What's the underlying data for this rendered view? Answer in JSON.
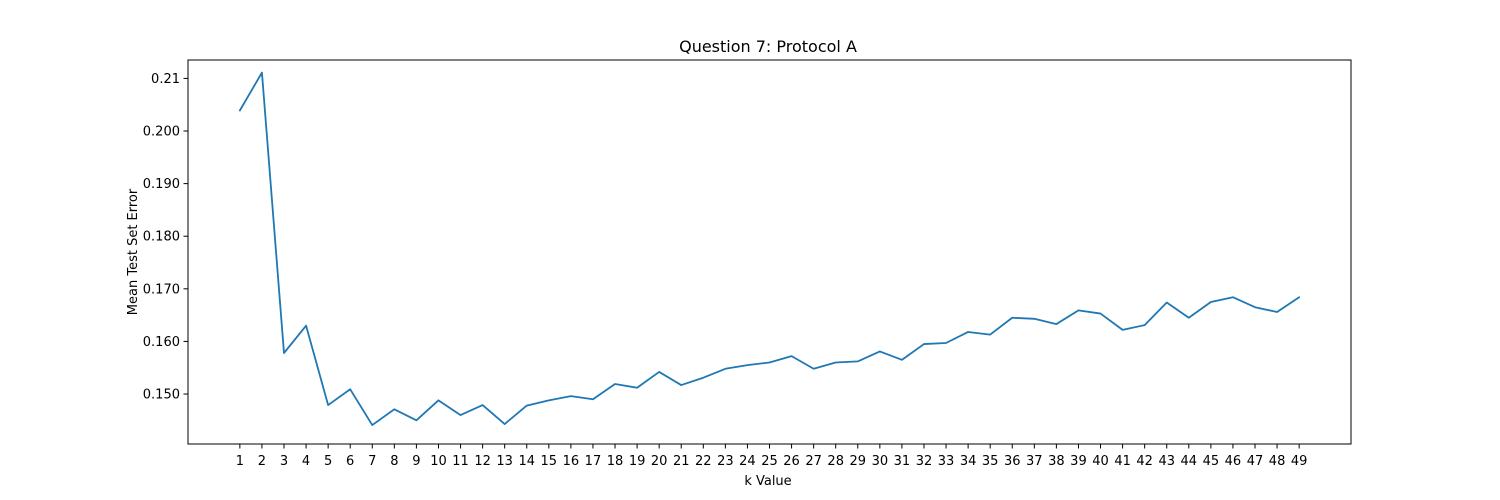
{
  "chart_data": {
    "type": "line",
    "title": "Question 7: Protocol A",
    "xlabel": "k Value",
    "ylabel": "Mean Test Set Error",
    "x": [
      1,
      2,
      3,
      4,
      5,
      6,
      7,
      8,
      9,
      10,
      11,
      12,
      13,
      14,
      15,
      16,
      17,
      18,
      19,
      20,
      21,
      22,
      23,
      24,
      25,
      26,
      27,
      28,
      29,
      30,
      31,
      32,
      33,
      34,
      35,
      36,
      37,
      38,
      39,
      40,
      41,
      42,
      43,
      44,
      45,
      46,
      47,
      48,
      49
    ],
    "x_ticks": [
      "1",
      "2",
      "3",
      "4",
      "5",
      "6",
      "7",
      "8",
      "9",
      "10",
      "11",
      "12",
      "13",
      "14",
      "15",
      "16",
      "17",
      "18",
      "19",
      "20",
      "21",
      "22",
      "23",
      "24",
      "25",
      "26",
      "27",
      "28",
      "29",
      "30",
      "31",
      "32",
      "33",
      "34",
      "35",
      "36",
      "37",
      "38",
      "39",
      "40",
      "41",
      "42",
      "43",
      "44",
      "45",
      "46",
      "47",
      "48",
      "49"
    ],
    "y_ticks": [
      "0.150",
      "0.160",
      "0.170",
      "0.180",
      "0.190",
      "0.200",
      "0.21"
    ],
    "y_tick_values": [
      0.15,
      0.16,
      0.17,
      0.18,
      0.19,
      0.2,
      0.21
    ],
    "xlim": [
      -1.35,
      51.35
    ],
    "ylim": [
      0.1405,
      0.2135
    ],
    "grid": false,
    "series": [
      {
        "color": "#1f77b4",
        "values": [
          0.2039,
          0.2111,
          0.1578,
          0.163,
          0.1479,
          0.1509,
          0.1441,
          0.1471,
          0.145,
          0.1488,
          0.146,
          0.1479,
          0.1443,
          0.1478,
          0.1488,
          0.1496,
          0.149,
          0.1519,
          0.1512,
          0.1542,
          0.1517,
          0.1531,
          0.1548,
          0.1555,
          0.156,
          0.1572,
          0.1548,
          0.156,
          0.1562,
          0.1581,
          0.1565,
          0.1595,
          0.1597,
          0.1618,
          0.1613,
          0.1645,
          0.1643,
          0.1633,
          0.1659,
          0.1653,
          0.1622,
          0.1631,
          0.1674,
          0.1645,
          0.1675,
          0.1684,
          0.1665,
          0.1656,
          0.1684
        ]
      }
    ]
  }
}
